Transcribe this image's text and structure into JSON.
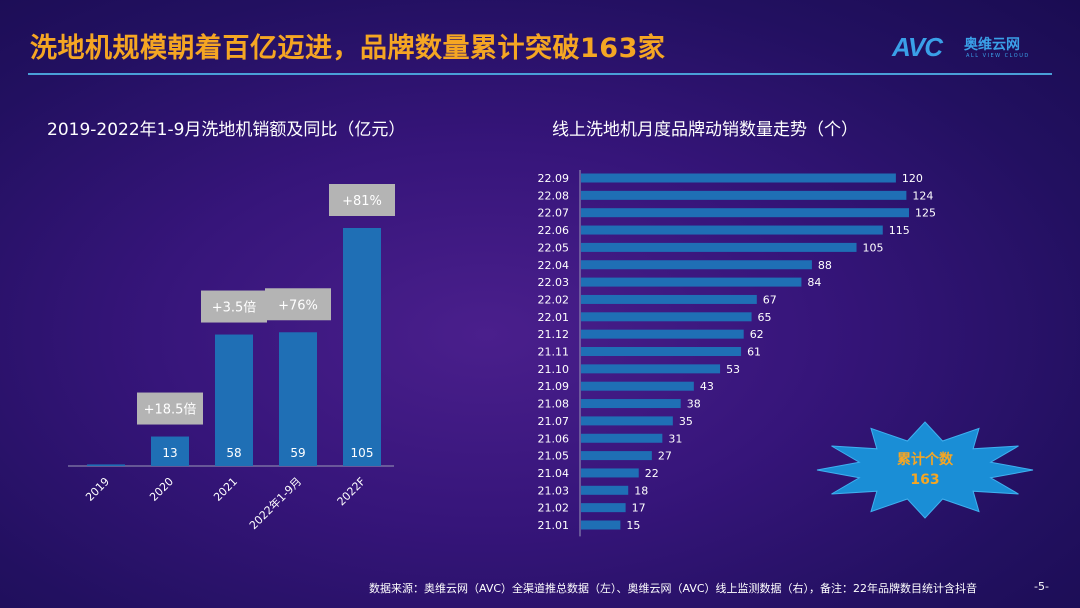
{
  "title": "洗地机规模朝着百亿迈进，品牌数量累计突破163家",
  "logo": {
    "avc": "AVC",
    "cn": "奥维云网",
    "en": "ALL VIEW CLOUD"
  },
  "colors": {
    "bar": "#1f6fb5",
    "title": "#f5a623",
    "label_box": "#b4b4b4"
  },
  "chart_data": [
    {
      "type": "bar",
      "title": "2019-2022年1-9月洗地机销额及同比（亿元）",
      "categories": [
        "2019",
        "2020",
        "2021",
        "2022年1-9月",
        "2022F"
      ],
      "values": [
        0.7,
        13,
        58,
        59,
        105
      ],
      "value_labels": [
        "",
        "13",
        "58",
        "59",
        "105"
      ],
      "growth_labels": [
        "",
        "+18.5倍",
        "+3.5倍",
        "+76%",
        "+81%"
      ],
      "ylim": [
        0,
        110
      ]
    },
    {
      "type": "bar",
      "orientation": "horizontal",
      "title": "线上洗地机月度品牌动销数量走势（个）",
      "categories": [
        "22.09",
        "22.08",
        "22.07",
        "22.06",
        "22.05",
        "22.04",
        "22.03",
        "22.02",
        "22.01",
        "21.12",
        "21.11",
        "21.10",
        "21.09",
        "21.08",
        "21.07",
        "21.06",
        "21.05",
        "21.04",
        "21.03",
        "21.02",
        "21.01"
      ],
      "values": [
        120,
        124,
        125,
        115,
        105,
        88,
        84,
        67,
        65,
        62,
        61,
        53,
        43,
        38,
        35,
        31,
        27,
        22,
        18,
        17,
        15
      ],
      "xlim": [
        0,
        130
      ]
    }
  ],
  "callout": {
    "line1": "累计个数",
    "line2": "163"
  },
  "footer": "数据来源：奥维云网（AVC）全渠道推总数据（左）、奥维云网（AVC）线上监测数据（右），备注：22年品牌数目统计含抖音",
  "page_number": "-5-"
}
